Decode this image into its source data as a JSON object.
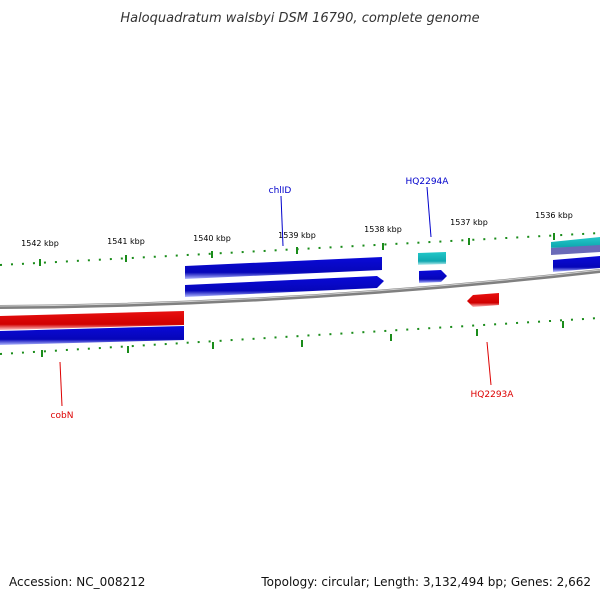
{
  "title": "Haloquadratum walsbyi DSM 16790, complete genome",
  "footer": {
    "accession": "Accession: NC_008212",
    "topology": "Topology: circular; Length: 3,132,494 bp; Genes: 2,662"
  },
  "ticks": [
    {
      "label": "1542 kbp"
    },
    {
      "label": "1541 kbp"
    },
    {
      "label": "1540 kbp"
    },
    {
      "label": "1539 kbp"
    },
    {
      "label": "1538 kbp"
    },
    {
      "label": "1537 kbp"
    },
    {
      "label": "1536 kbp"
    }
  ],
  "genes": [
    {
      "label": "chlID",
      "color": "#0000cc"
    },
    {
      "label": "HQ2294A",
      "color": "#0000cc"
    },
    {
      "label": "cobN",
      "color": "#dd0000"
    },
    {
      "label": "HQ2293A",
      "color": "#dd0000"
    }
  ],
  "colors": {
    "forward_cds": "#0a0ad8",
    "reverse_cds": "#e81010",
    "rna": "#22c8c8",
    "tick_marks": "#1a8c1a",
    "backbone": "#808080"
  }
}
